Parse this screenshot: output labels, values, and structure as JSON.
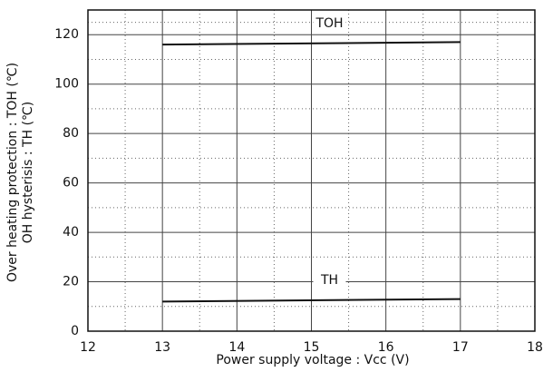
{
  "chart_data": {
    "type": "line",
    "x_label": "Power supply voltage : Vcc (V)",
    "y_label": [
      "Over heating protection : TOH (℃)",
      "OH hysterisis : TH (℃)"
    ],
    "series": [
      {
        "name": "TOH",
        "color": "#111111",
        "x": [
          13,
          17
        ],
        "values": [
          116,
          117
        ]
      },
      {
        "name": "TH",
        "color": "#111111",
        "x": [
          13,
          17
        ],
        "values": [
          12,
          13
        ]
      }
    ],
    "xlim": [
      12,
      18
    ],
    "xticks": [
      12,
      13,
      14,
      15,
      16,
      17,
      18
    ],
    "ylim": [
      0,
      130
    ],
    "yticks": [
      0,
      20,
      40,
      60,
      80,
      100,
      120
    ],
    "grid": true
  }
}
